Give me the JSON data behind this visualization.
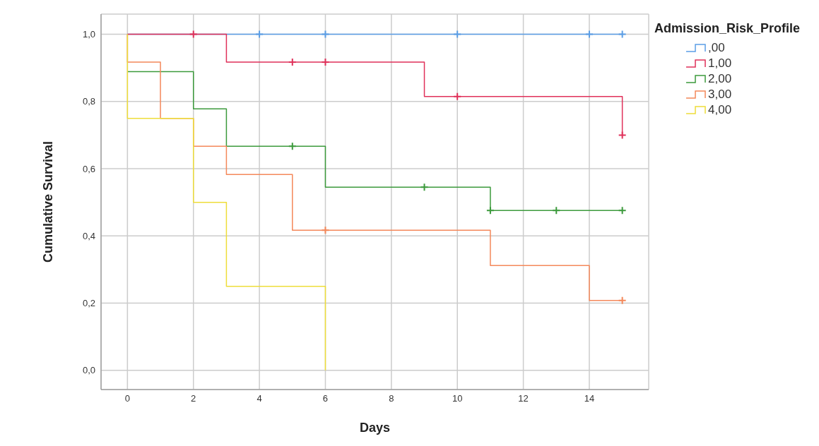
{
  "chart_data": {
    "type": "step",
    "xlabel": "Days",
    "ylabel": "Cumulative Survival",
    "legend_title": "Admission_Risk_Profile",
    "legend": "top right",
    "grid": true,
    "xlim": [
      -0.8,
      15.8
    ],
    "xticks": [
      0,
      2,
      4,
      6,
      8,
      10,
      12,
      14
    ],
    "ylim": [
      -0.057,
      1.06
    ],
    "yticks": [
      {
        "value": 0,
        "label": "0,0"
      },
      {
        "value": 0.2,
        "label": "0,2"
      },
      {
        "value": 0.4,
        "label": "0,4"
      },
      {
        "value": 0.6,
        "label": "0,6"
      },
      {
        "value": 0.8,
        "label": "0,8"
      },
      {
        "value": 1,
        "label": "1,0"
      }
    ],
    "series": [
      {
        "name": ",00",
        "color": "#5b9ee6",
        "x": [
          0,
          15
        ],
        "values": [
          1,
          1
        ]
      },
      {
        "name": "1,00",
        "color": "#e0315a",
        "x": [
          0,
          3,
          9,
          15
        ],
        "values": [
          1,
          0.917,
          0.815,
          0.7
        ]
      },
      {
        "name": "2,00",
        "color": "#3c9a3c",
        "x": [
          0,
          2,
          3,
          6,
          11,
          15
        ],
        "values": [
          0.889,
          0.778,
          0.667,
          0.545,
          0.476,
          0.476
        ]
      },
      {
        "name": "3,00",
        "color": "#f4885a",
        "x": [
          0,
          0,
          1,
          2,
          3,
          5,
          11,
          14,
          15
        ],
        "values": [
          1,
          0.917,
          0.75,
          0.667,
          0.583,
          0.417,
          0.312,
          0.208,
          0.208
        ]
      },
      {
        "name": "4,00",
        "color": "#eedd3a",
        "x": [
          0,
          0,
          2,
          3,
          6
        ],
        "values": [
          1,
          0.75,
          0.5,
          0.25,
          0
        ]
      },
      {
        "type": "scatter",
        "marker": "cross",
        "color": "#5b9ee6",
        "x": [
          4,
          6,
          10,
          14,
          15
        ],
        "values": [
          1,
          1,
          1,
          1,
          1
        ]
      },
      {
        "type": "scatter",
        "marker": "cross",
        "color": "#e0315a",
        "x": [
          2,
          5,
          6,
          10,
          15
        ],
        "values": [
          1,
          0.917,
          0.917,
          0.815,
          0.7
        ]
      },
      {
        "type": "scatter",
        "marker": "cross",
        "color": "#3c9a3c",
        "x": [
          5,
          9,
          11,
          13,
          15
        ],
        "values": [
          0.667,
          0.545,
          0.476,
          0.476,
          0.476
        ]
      },
      {
        "type": "scatter",
        "marker": "cross",
        "color": "#f4885a",
        "x": [
          6,
          15
        ],
        "values": [
          0.417,
          0.208
        ]
      }
    ]
  }
}
